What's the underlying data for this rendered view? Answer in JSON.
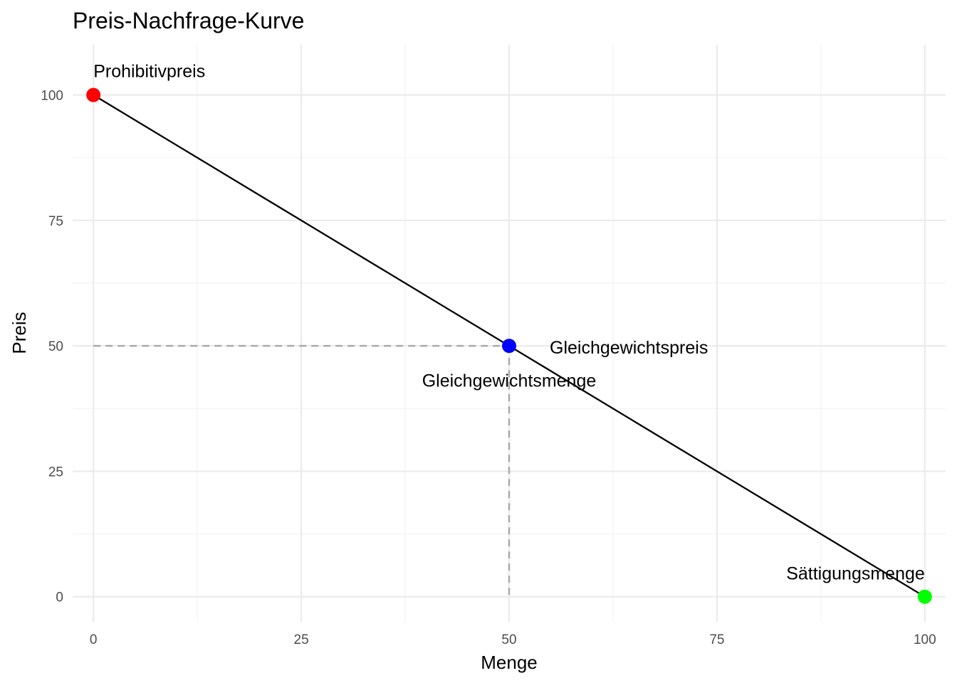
{
  "chart_data": {
    "type": "line",
    "title": "Preis-Nachfrage-Kurve",
    "xlabel": "Menge",
    "ylabel": "Preis",
    "xlim": [
      -2.5,
      102.5
    ],
    "ylim": [
      -5,
      110
    ],
    "x_ticks": [
      0,
      25,
      50,
      75,
      100
    ],
    "y_ticks": [
      0,
      25,
      50,
      75,
      100
    ],
    "x_tick_labels": [
      "0",
      "25",
      "50",
      "75",
      "100"
    ],
    "y_tick_labels": [
      "0",
      "25",
      "50",
      "75",
      "100"
    ],
    "grid": true,
    "series": [
      {
        "x": [
          0,
          100
        ],
        "y": [
          100,
          0
        ],
        "color": "#000000"
      }
    ],
    "reference_lines": [
      {
        "from": [
          0,
          50
        ],
        "to": [
          50,
          50
        ],
        "style": "dashed",
        "color": "#aaaaaa"
      },
      {
        "from": [
          50,
          50
        ],
        "to": [
          50,
          0
        ],
        "style": "dashed",
        "color": "#aaaaaa"
      }
    ],
    "points": [
      {
        "x": 0,
        "y": 100,
        "color": "#ff0000",
        "label": "Prohibitivpreis"
      },
      {
        "x": 50,
        "y": 50,
        "color": "#0000ff",
        "label": "Gleichgewichtspreis"
      },
      {
        "x": 100,
        "y": 0,
        "color": "#00ff00",
        "label": "Sättigungsmenge"
      }
    ],
    "annotations": [
      {
        "text": "Gleichgewichtsmenge",
        "x": 50,
        "y": 43
      }
    ]
  }
}
